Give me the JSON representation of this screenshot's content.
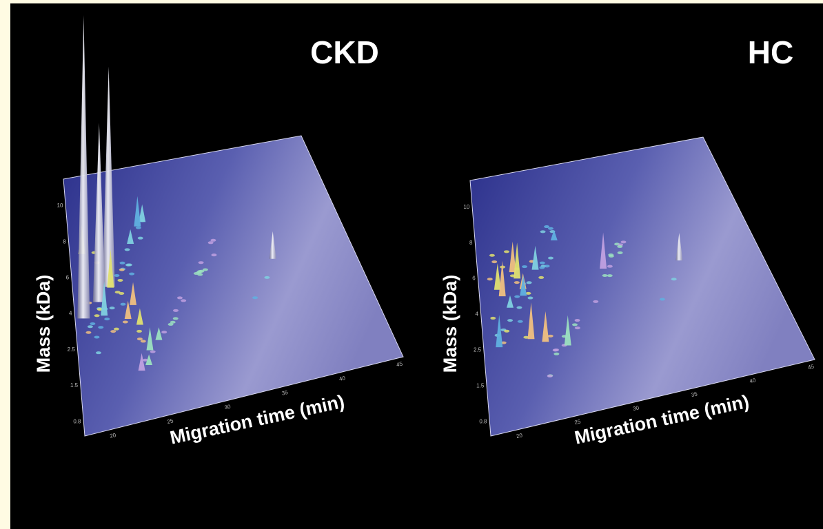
{
  "panels": [
    {
      "title": "CKD",
      "y_axis_label": "Mass (kDa)",
      "x_axis_label": "Migration time (min)",
      "x_tick_labels": [
        "20",
        "25",
        "30",
        "35",
        "40",
        "45"
      ],
      "y_tick_labels": [
        "0.8",
        "1.5",
        "2.5",
        "4",
        "6",
        "8",
        "10"
      ]
    },
    {
      "title": "HC",
      "y_axis_label": "Mass (kDa)",
      "x_axis_label": "Migration time (min)",
      "x_tick_labels": [
        "20",
        "25",
        "30",
        "35",
        "40",
        "45"
      ],
      "y_tick_labels": [
        "0.8",
        "1.5",
        "2.5",
        "4",
        "6",
        "8",
        "10"
      ]
    }
  ]
}
